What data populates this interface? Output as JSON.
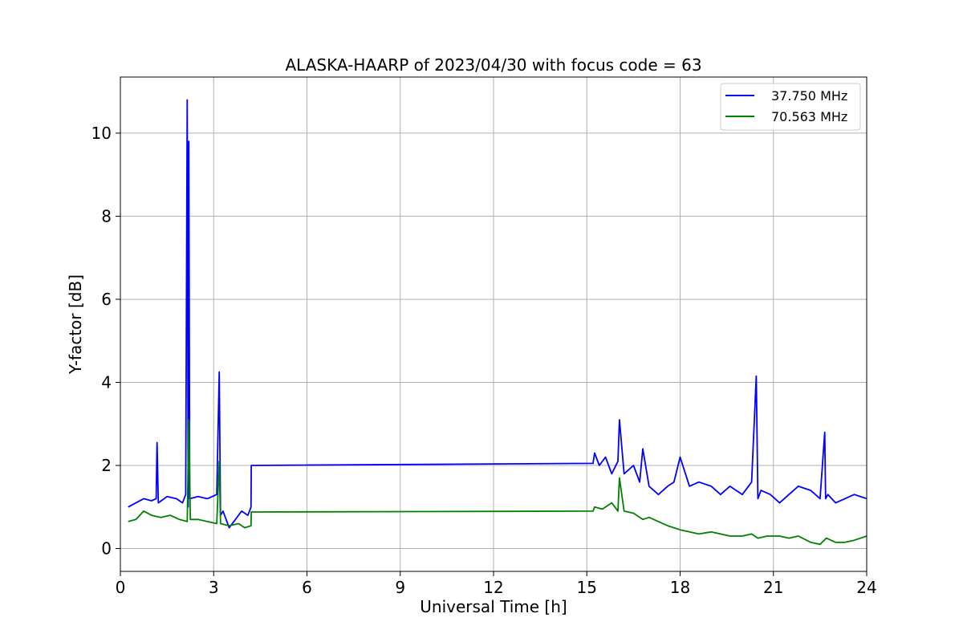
{
  "chart_data": {
    "type": "line",
    "title": "ALASKA-HAARP of 2023/04/30 with focus code = 63",
    "xlabel": "Universal Time [h]",
    "ylabel": "Y-factor [dB]",
    "xlim": [
      0,
      24
    ],
    "ylim": [
      -0.55,
      11.35
    ],
    "xticks": [
      0,
      3,
      6,
      9,
      12,
      15,
      18,
      21,
      24
    ],
    "xtick_labels": [
      "0",
      "3",
      "6",
      "9",
      "12",
      "15",
      "18",
      "21",
      "24"
    ],
    "yticks": [
      0,
      2,
      4,
      6,
      8,
      10
    ],
    "ytick_labels": [
      "0",
      "2",
      "4",
      "6",
      "8",
      "10"
    ],
    "grid": true,
    "legend_position": "top-right",
    "series": [
      {
        "name": "37.750 MHz",
        "color": "#0000ff",
        "x": [
          0.25,
          0.5,
          0.75,
          1.0,
          1.15,
          1.18,
          1.22,
          1.5,
          1.8,
          2.0,
          2.1,
          2.15,
          2.18,
          2.2,
          2.23,
          2.5,
          2.8,
          3.1,
          3.18,
          3.22,
          3.3,
          3.5,
          3.7,
          3.9,
          4.0,
          4.1,
          4.2,
          4.21,
          15.2,
          15.25,
          15.4,
          15.6,
          15.8,
          16.0,
          16.05,
          16.2,
          16.5,
          16.7,
          16.8,
          17.0,
          17.3,
          17.6,
          17.8,
          18.0,
          18.3,
          18.6,
          19.0,
          19.3,
          19.6,
          20.0,
          20.3,
          20.45,
          20.5,
          20.6,
          20.9,
          21.2,
          21.5,
          21.8,
          22.2,
          22.5,
          22.65,
          22.68,
          22.75,
          23.0,
          23.3,
          23.6,
          24.0
        ],
        "y": [
          1.0,
          1.1,
          1.2,
          1.15,
          1.2,
          2.55,
          1.1,
          1.25,
          1.2,
          1.1,
          1.3,
          10.8,
          1.0,
          9.8,
          1.2,
          1.25,
          1.2,
          1.3,
          4.25,
          0.8,
          0.9,
          0.5,
          0.7,
          0.9,
          0.85,
          0.8,
          1.0,
          2.0,
          2.05,
          2.3,
          2.0,
          2.2,
          1.8,
          2.1,
          3.1,
          1.8,
          2.0,
          1.6,
          2.4,
          1.5,
          1.3,
          1.5,
          1.6,
          2.2,
          1.5,
          1.6,
          1.5,
          1.3,
          1.5,
          1.3,
          1.6,
          4.15,
          1.2,
          1.4,
          1.3,
          1.1,
          1.3,
          1.5,
          1.4,
          1.2,
          2.8,
          1.2,
          1.3,
          1.1,
          1.2,
          1.3,
          1.2
        ]
      },
      {
        "name": "70.563 MHz",
        "color": "#008000",
        "x": [
          0.25,
          0.5,
          0.75,
          1.0,
          1.3,
          1.6,
          1.9,
          2.15,
          2.2,
          2.25,
          2.5,
          2.8,
          3.1,
          3.18,
          3.22,
          3.5,
          3.8,
          4.0,
          4.2,
          4.21,
          15.2,
          15.25,
          15.5,
          15.8,
          16.0,
          16.05,
          16.2,
          16.5,
          16.8,
          17.0,
          17.3,
          17.6,
          18.0,
          18.3,
          18.6,
          19.0,
          19.3,
          19.6,
          20.0,
          20.3,
          20.5,
          20.8,
          21.2,
          21.5,
          21.8,
          22.2,
          22.5,
          22.7,
          23.0,
          23.3,
          23.6,
          24.0
        ],
        "y": [
          0.65,
          0.7,
          0.9,
          0.8,
          0.75,
          0.8,
          0.7,
          0.65,
          3.1,
          0.7,
          0.7,
          0.65,
          0.6,
          2.1,
          0.6,
          0.55,
          0.6,
          0.5,
          0.55,
          0.88,
          0.9,
          1.0,
          0.95,
          1.1,
          0.9,
          1.7,
          0.9,
          0.85,
          0.7,
          0.75,
          0.65,
          0.55,
          0.45,
          0.4,
          0.35,
          0.4,
          0.35,
          0.3,
          0.3,
          0.35,
          0.25,
          0.3,
          0.3,
          0.25,
          0.3,
          0.15,
          0.1,
          0.25,
          0.15,
          0.15,
          0.2,
          0.3
        ]
      }
    ]
  }
}
